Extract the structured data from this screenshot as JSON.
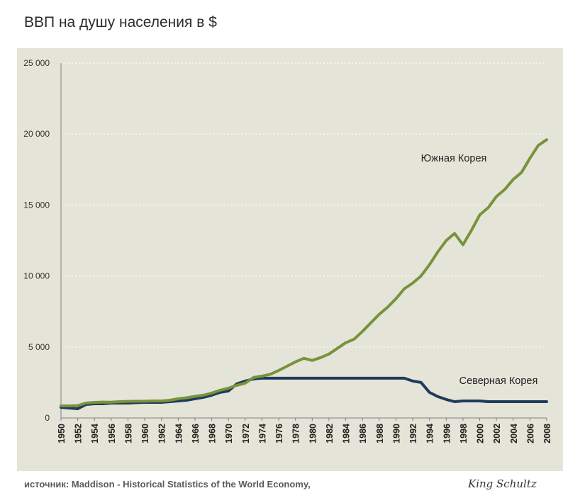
{
  "title": "ВВП на душу населения в $",
  "source": "источник: Maddison - Historical Statistics of the World Economy,",
  "watermark": "King Schultz",
  "colors": {
    "plot_background": "#e5e4d8",
    "south_korea": "#77933c",
    "north_korea": "#1f3b5c",
    "grid": "#ffffff"
  },
  "chart_data": {
    "type": "line",
    "title": "ВВП на душу населения в $",
    "xlabel": "",
    "ylabel": "",
    "ylim": [
      0,
      25000
    ],
    "xlim": [
      1950,
      2008
    ],
    "grid": "horizontal dotted",
    "y_ticks": [
      {
        "value": 0,
        "label": "0"
      },
      {
        "value": 5000,
        "label": "5 000"
      },
      {
        "value": 10000,
        "label": "10 000"
      },
      {
        "value": 15000,
        "label": "15 000"
      },
      {
        "value": 20000,
        "label": "20 000"
      },
      {
        "value": 25000,
        "label": "25 000"
      }
    ],
    "x_ticks": [
      "1950",
      "1952",
      "1954",
      "1956",
      "1958",
      "1960",
      "1962",
      "1964",
      "1966",
      "1968",
      "1970",
      "1972",
      "1974",
      "1976",
      "1978",
      "1980",
      "1982",
      "1984",
      "1986",
      "1988",
      "1990",
      "1992",
      "1994",
      "1996",
      "1998",
      "2000",
      "2002",
      "2004",
      "2006",
      "2008"
    ],
    "x": [
      1950,
      1951,
      1952,
      1953,
      1954,
      1955,
      1956,
      1957,
      1958,
      1959,
      1960,
      1961,
      1962,
      1963,
      1964,
      1965,
      1966,
      1967,
      1968,
      1969,
      1970,
      1971,
      1972,
      1973,
      1974,
      1975,
      1976,
      1977,
      1978,
      1979,
      1980,
      1981,
      1982,
      1983,
      1984,
      1985,
      1986,
      1987,
      1988,
      1989,
      1990,
      1991,
      1992,
      1993,
      1994,
      1995,
      1996,
      1997,
      1998,
      1999,
      2000,
      2001,
      2002,
      2003,
      2004,
      2005,
      2006,
      2007,
      2008
    ],
    "series": [
      {
        "name": "Южная Корея",
        "color": "#77933c",
        "values": [
          850,
          850,
          870,
          1050,
          1100,
          1120,
          1110,
          1150,
          1170,
          1180,
          1180,
          1200,
          1200,
          1250,
          1350,
          1420,
          1520,
          1600,
          1750,
          1950,
          2100,
          2300,
          2450,
          2850,
          2950,
          3080,
          3350,
          3650,
          3950,
          4200,
          4050,
          4250,
          4500,
          4900,
          5300,
          5550,
          6100,
          6700,
          7300,
          7800,
          8400,
          9100,
          9500,
          10000,
          10800,
          11700,
          12500,
          13000,
          12200,
          13200,
          14300,
          14800,
          15600,
          16100,
          16800,
          17300,
          18300,
          19200,
          19600
        ]
      },
      {
        "name": "Северная Корея",
        "color": "#1f3b5c",
        "values": [
          750,
          700,
          650,
          950,
          1000,
          1000,
          1050,
          1050,
          1050,
          1080,
          1100,
          1100,
          1100,
          1150,
          1200,
          1250,
          1350,
          1450,
          1600,
          1800,
          1900,
          2400,
          2600,
          2750,
          2800,
          2800,
          2800,
          2800,
          2800,
          2800,
          2800,
          2800,
          2800,
          2800,
          2800,
          2800,
          2800,
          2800,
          2800,
          2800,
          2800,
          2800,
          2600,
          2500,
          1800,
          1500,
          1300,
          1150,
          1200,
          1200,
          1200,
          1150,
          1150,
          1150,
          1150,
          1150,
          1150,
          1150,
          1150
        ]
      }
    ],
    "annotations": [
      {
        "text": "Южная Корея",
        "series": "Южная Корея"
      },
      {
        "text": "Северная Корея",
        "series": "Северная Корея"
      }
    ]
  }
}
